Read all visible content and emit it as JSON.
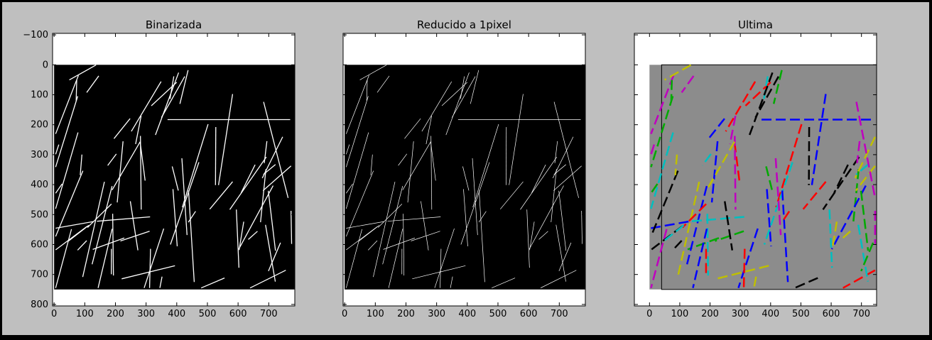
{
  "window": {
    "background": "#bfbfbf",
    "frame_color": "#000000"
  },
  "panels": [
    {
      "title": "Binarizada",
      "kind": "binarized",
      "x_ticks": [
        "0",
        "100",
        "200",
        "300",
        "400",
        "500",
        "600",
        "700"
      ],
      "y_ticks": [
        "−100",
        "0",
        "100",
        "200",
        "300",
        "400",
        "500",
        "600",
        "700",
        "800"
      ],
      "show_y_ticks": true
    },
    {
      "title": "Reducido a 1pixel",
      "kind": "skeleton",
      "x_ticks": [
        "0",
        "100",
        "200",
        "300",
        "400",
        "500",
        "600",
        "700"
      ],
      "y_ticks": [],
      "show_y_ticks": false
    },
    {
      "title": "Ultima",
      "kind": "overlay",
      "x_ticks": [
        "0",
        "100",
        "200",
        "300",
        "400",
        "500",
        "600",
        "700"
      ],
      "y_ticks": [],
      "show_y_ticks": false
    }
  ],
  "colors": {
    "image_background": "#000000",
    "line_white": "#ffffff",
    "overlay_palette": [
      "#0000ff",
      "#ff0000",
      "#00aa00",
      "#00bfbf",
      "#bf00bf",
      "#bfbf00",
      "#000000"
    ]
  }
}
